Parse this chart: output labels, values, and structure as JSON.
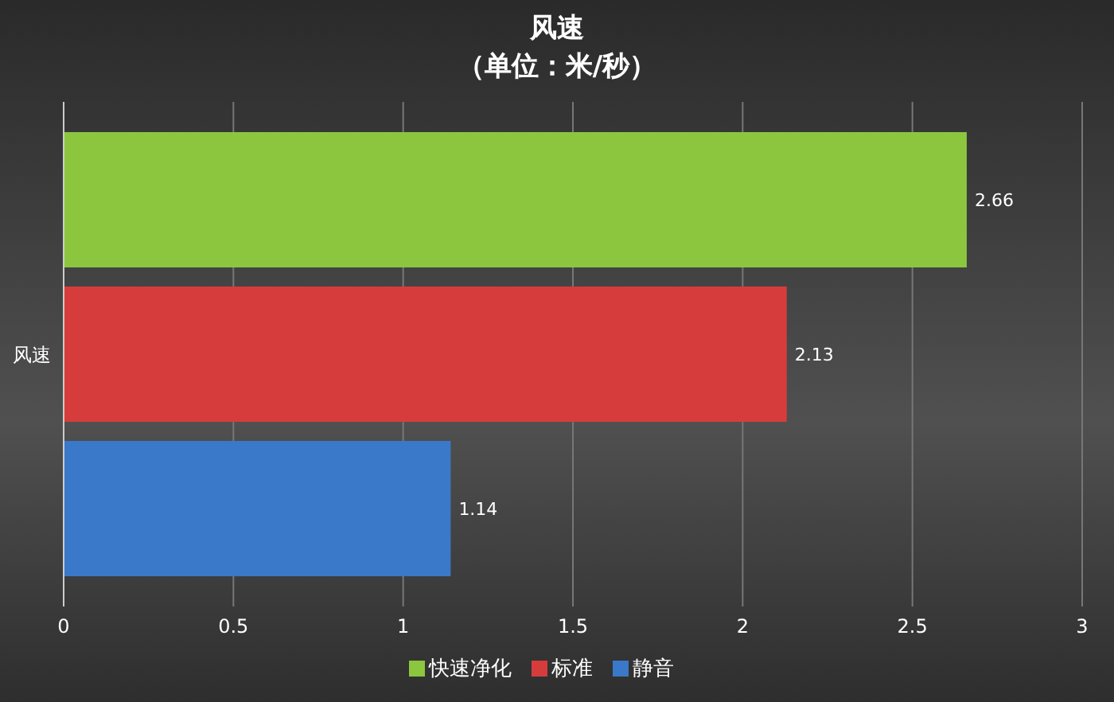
{
  "chart_data": {
    "type": "bar",
    "orientation": "horizontal",
    "title": "风速",
    "subtitle": "（单位：米/秒）",
    "categories": [
      "风速"
    ],
    "series": [
      {
        "name": "快速净化",
        "color": "#8cc63e",
        "values": [
          2.66
        ]
      },
      {
        "name": "标准",
        "color": "#d63c3c",
        "values": [
          2.13
        ]
      },
      {
        "name": "静音",
        "color": "#3a78c9",
        "values": [
          1.14
        ]
      }
    ],
    "xlim": [
      0,
      3
    ],
    "xticks": [
      0,
      0.5,
      1,
      1.5,
      2,
      2.5,
      3
    ],
    "grid": "x",
    "legend": "bottom",
    "data_labels": true
  }
}
